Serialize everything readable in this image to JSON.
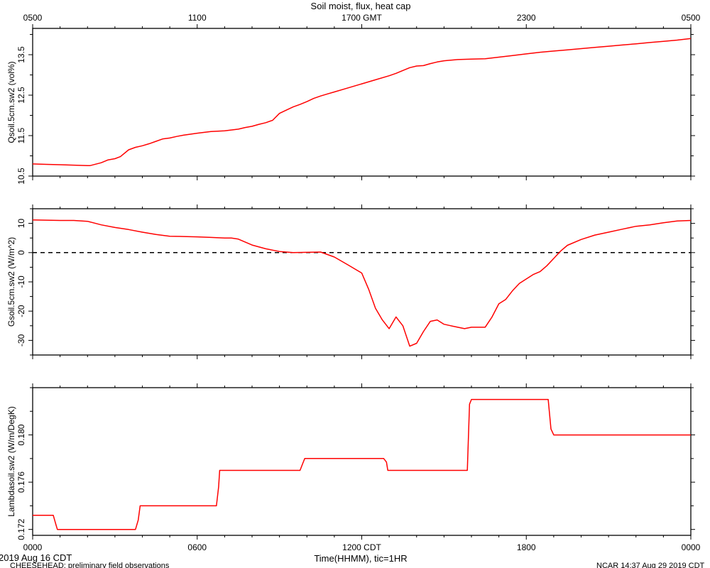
{
  "title": "Soil moist, flux, heat cap",
  "colors": {
    "trace": "#ff0000",
    "axis": "#000000",
    "zero_line": "#000000"
  },
  "top_axis": {
    "ticks": [
      {
        "hour": 0,
        "label": "0500"
      },
      {
        "hour": 6,
        "label": "1100"
      },
      {
        "hour": 12,
        "label": "1700 GMT"
      },
      {
        "hour": 18,
        "label": "2300"
      },
      {
        "hour": 24,
        "label": "0500"
      }
    ]
  },
  "bottom_axis": {
    "ticks": [
      {
        "hour": 0,
        "label": "0000"
      },
      {
        "hour": 6,
        "label": "0600"
      },
      {
        "hour": 12,
        "label": "1200 CDT"
      },
      {
        "hour": 18,
        "label": "1800"
      },
      {
        "hour": 24,
        "label": "0000"
      }
    ],
    "xlabel": "Time(HHMM), tic=1HR"
  },
  "footer": {
    "date": "2019 Aug 16 CDT",
    "project": "CHEESEHEAD: preliminary field observations",
    "stamp": "NCAR 14:37 Aug 29 2019 CDT"
  },
  "chart_data": [
    {
      "type": "line",
      "name": "panel-moisture",
      "ylabel": "Qsoil.5cm.sw2 (vol%)",
      "xlim": [
        0,
        24
      ],
      "ylim": [
        10.5,
        14.15
      ],
      "yticks": [
        10.5,
        11.5,
        12.5,
        13.5
      ],
      "ytick_labels": [
        "10.5",
        "11.5",
        "12.5",
        "13.5"
      ],
      "zero_line": false,
      "series": [
        {
          "x": [
            0,
            0.5,
            1,
            1.5,
            2,
            2.1,
            2.5,
            2.75,
            3,
            3.2,
            3.5,
            3.75,
            4,
            4.25,
            4.5,
            4.75,
            5,
            5.25,
            5.5,
            6,
            6.5,
            7,
            7.5,
            7.75,
            8,
            8.25,
            8.5,
            8.75,
            9,
            9.25,
            9.5,
            9.75,
            10,
            10.25,
            10.5,
            10.75,
            11,
            11.5,
            12,
            12.5,
            13,
            13.25,
            13.5,
            13.75,
            14,
            14.25,
            14.5,
            14.75,
            15,
            15.5,
            16,
            16.5,
            17,
            17.5,
            18,
            18.5,
            19,
            19.5,
            20,
            20.5,
            21,
            21.5,
            22,
            22.5,
            23,
            23.5,
            24
          ],
          "y": [
            10.8,
            10.79,
            10.78,
            10.77,
            10.76,
            10.76,
            10.83,
            10.9,
            10.93,
            10.98,
            11.15,
            11.21,
            11.25,
            11.3,
            11.36,
            11.42,
            11.44,
            11.48,
            11.51,
            11.56,
            11.6,
            11.62,
            11.66,
            11.7,
            11.73,
            11.78,
            11.82,
            11.88,
            12.05,
            12.13,
            12.21,
            12.27,
            12.34,
            12.42,
            12.48,
            12.53,
            12.58,
            12.68,
            12.78,
            12.88,
            12.98,
            13.04,
            13.11,
            13.18,
            13.22,
            13.23,
            13.28,
            13.32,
            13.35,
            13.38,
            13.39,
            13.4,
            13.44,
            13.48,
            13.52,
            13.56,
            13.59,
            13.62,
            13.65,
            13.68,
            13.71,
            13.74,
            13.77,
            13.8,
            13.83,
            13.86,
            13.9
          ]
        }
      ]
    },
    {
      "type": "line",
      "name": "panel-flux",
      "ylabel": "Gsoil.5cm.sw2 (W/m^2)",
      "xlim": [
        0,
        24
      ],
      "ylim": [
        -35,
        15
      ],
      "yticks": [
        -30,
        -20,
        -10,
        0,
        10
      ],
      "ytick_labels": [
        "-30",
        "-20",
        "-10",
        "0",
        "10"
      ],
      "zero_line": true,
      "series": [
        {
          "x": [
            0,
            0.5,
            1,
            1.5,
            2,
            2.5,
            3,
            3.5,
            4,
            4.5,
            5,
            5.5,
            6,
            6.5,
            7,
            7.25,
            7.5,
            8,
            8.5,
            9,
            9.5,
            10,
            10.5,
            11,
            11.5,
            12,
            12.25,
            12.5,
            12.75,
            13,
            13.25,
            13.5,
            13.75,
            14,
            14.25,
            14.5,
            14.75,
            15,
            15.25,
            15.5,
            15.75,
            16,
            16.25,
            16.5,
            16.75,
            17,
            17.25,
            17.5,
            17.75,
            18,
            18.25,
            18.5,
            18.75,
            19,
            19.25,
            19.5,
            20,
            20.5,
            21,
            21.5,
            22,
            22.5,
            23,
            23.5,
            24
          ],
          "y": [
            11.2,
            11.1,
            11.0,
            11.0,
            10.7,
            9.5,
            8.6,
            7.9,
            7.0,
            6.2,
            5.6,
            5.5,
            5.4,
            5.2,
            5.0,
            5.0,
            4.6,
            2.6,
            1.3,
            0.4,
            0.0,
            0.1,
            0.2,
            -1.5,
            -4.2,
            -7.0,
            -12.5,
            -19.0,
            -23.0,
            -26.0,
            -22.0,
            -25.0,
            -32.0,
            -31.0,
            -27.0,
            -23.5,
            -23.0,
            -24.5,
            -25.0,
            -25.5,
            -26.0,
            -25.5,
            -25.5,
            -25.5,
            -22.0,
            -17.5,
            -16.0,
            -13.0,
            -10.5,
            -9.0,
            -7.5,
            -6.5,
            -4.5,
            -2.0,
            0.5,
            2.5,
            4.5,
            6.0,
            7.0,
            8.0,
            9.0,
            9.5,
            10.2,
            10.8,
            11.0
          ]
        }
      ]
    },
    {
      "type": "line",
      "name": "panel-lambda",
      "ylabel": "Lambdasoil.sw2 (W/m/DegK)",
      "xlim": [
        0,
        24
      ],
      "ylim": [
        0.1715,
        0.184
      ],
      "yticks": [
        0.172,
        0.176,
        0.18
      ],
      "ytick_labels": [
        "0.172",
        "0.176",
        "0.180"
      ],
      "zero_line": false,
      "series": [
        {
          "x": [
            0,
            0.75,
            0.85,
            0.9,
            3.75,
            3.85,
            3.92,
            6.7,
            6.78,
            6.82,
            9.75,
            9.85,
            9.92,
            12.8,
            12.9,
            12.95,
            15.85,
            15.93,
            16.0,
            18.8,
            18.9,
            19.0,
            24
          ],
          "y": [
            0.1732,
            0.1732,
            0.1724,
            0.172,
            0.172,
            0.1728,
            0.174,
            0.174,
            0.1756,
            0.177,
            0.177,
            0.1776,
            0.178,
            0.178,
            0.1777,
            0.177,
            0.177,
            0.1826,
            0.183,
            0.183,
            0.1805,
            0.18,
            0.18
          ]
        }
      ]
    }
  ]
}
